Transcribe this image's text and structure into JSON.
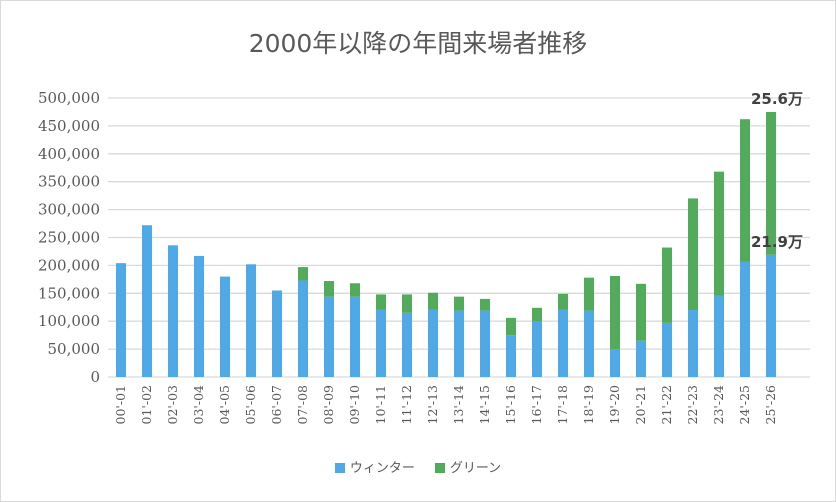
{
  "chart_data": {
    "type": "bar",
    "stacked": true,
    "title": "2000年以降の年間来場者推移",
    "xlabel": "",
    "ylabel": "",
    "ylim": [
      0,
      500000
    ],
    "yticks": [
      "0",
      "50,000",
      "100,000",
      "150,000",
      "200,000",
      "250,000",
      "300,000",
      "350,000",
      "400,000",
      "450,000",
      "500,000"
    ],
    "grid": true,
    "legend_position": "bottom",
    "categories": [
      "00'-01",
      "01'-02",
      "02'-03",
      "03'-04",
      "04'-05",
      "05'-06",
      "06'-07",
      "07'-08",
      "08'-09",
      "09'-10",
      "10'-11",
      "11'-12",
      "12'-13",
      "13'-14",
      "14'-15",
      "15'-16",
      "16'-17",
      "17'-18",
      "18'-19",
      "19'-20",
      "20'-21",
      "21'-22",
      "22'-23",
      "23'-24",
      "24'-25",
      "25'-26"
    ],
    "series": [
      {
        "name": "ウィンター",
        "color": "#4fa9e6",
        "values": [
          204000,
          272000,
          236000,
          217000,
          180000,
          202000,
          155000,
          173000,
          144000,
          144000,
          121000,
          115000,
          121000,
          119000,
          119000,
          75000,
          99000,
          121000,
          119000,
          50000,
          65000,
          97000,
          120000,
          146000,
          207000,
          219000
        ]
      },
      {
        "name": "グリーン",
        "color": "#52ab5a",
        "values": [
          0,
          0,
          0,
          0,
          0,
          0,
          0,
          24000,
          28000,
          24000,
          27000,
          33000,
          30000,
          25000,
          21000,
          31000,
          25000,
          28000,
          59000,
          131000,
          102000,
          135000,
          200000,
          222000,
          255000,
          256000
        ]
      }
    ],
    "annotations": [
      {
        "category": "25'-26",
        "series": "ウィンター",
        "text": "21.9万"
      },
      {
        "category": "25'-26",
        "series": "グリーン",
        "text": "25.6万"
      }
    ]
  }
}
